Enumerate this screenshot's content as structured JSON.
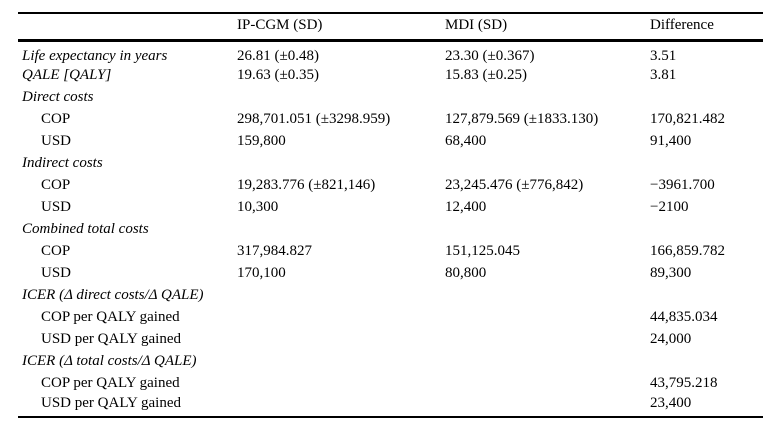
{
  "colors": {
    "background": "#ffffff",
    "text": "#000000",
    "rule": "#000000"
  },
  "table": {
    "columns": {
      "stub": "",
      "ipcgm": "IP-CGM (SD)",
      "mdi": "MDI (SD)",
      "difference": "Difference"
    },
    "rows": [
      {
        "label": "Life expectancy in years",
        "v1": "26.81 (±0.48)",
        "v2": "23.30 (±0.367)",
        "v3": "3.51"
      },
      {
        "label": "QALE [QALY]",
        "v1": "19.63 (±0.35)",
        "v2": "15.83 (±0.25)",
        "v3": "3.81"
      },
      {
        "label": "Direct costs",
        "v1": "",
        "v2": "",
        "v3": ""
      },
      {
        "label": "COP",
        "v1": "298,701.051 (±3298.959)",
        "v2": "127,879.569 (±1833.130)",
        "v3": "170,821.482"
      },
      {
        "label": "USD",
        "v1": "159,800",
        "v2": "68,400",
        "v3": "91,400"
      },
      {
        "label": "Indirect costs",
        "v1": "",
        "v2": "",
        "v3": ""
      },
      {
        "label": "COP",
        "v1": "19,283.776 (±821,146)",
        "v2": "23,245.476 (±776,842)",
        "v3": "−3961.700"
      },
      {
        "label": "USD",
        "v1": "10,300",
        "v2": "12,400",
        "v3": "−2100"
      },
      {
        "label": "Combined total costs",
        "v1": "",
        "v2": "",
        "v3": ""
      },
      {
        "label": "COP",
        "v1": "317,984.827",
        "v2": "151,125.045",
        "v3": "166,859.782"
      },
      {
        "label": "USD",
        "v1": "170,100",
        "v2": "80,800",
        "v3": "89,300"
      },
      {
        "label": "ICER (Δ direct costs/Δ QALE)",
        "v1": "",
        "v2": "",
        "v3": ""
      },
      {
        "label": "COP per QALY gained",
        "v1": "",
        "v2": "",
        "v3": "44,835.034"
      },
      {
        "label": "USD per QALY gained",
        "v1": "",
        "v2": "",
        "v3": "24,000"
      },
      {
        "label": "ICER (Δ total costs/Δ QALE)",
        "v1": "",
        "v2": "",
        "v3": ""
      },
      {
        "label": "COP per QALY gained",
        "v1": "",
        "v2": "",
        "v3": "43,795.218"
      },
      {
        "label": "USD per QALY gained",
        "v1": "",
        "v2": "",
        "v3": "23,400"
      }
    ]
  }
}
